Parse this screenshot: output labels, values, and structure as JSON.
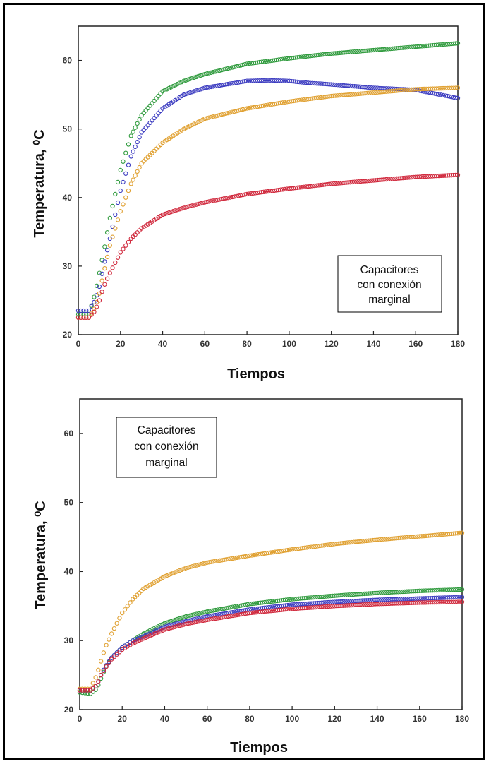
{
  "chart_data": [
    {
      "type": "scatter",
      "xlabel": "Tiempos",
      "ylabel": "Temperatura, ⁰C",
      "xlim": [
        0,
        180
      ],
      "ylim": [
        20,
        65
      ],
      "xticks": [
        0,
        20,
        40,
        60,
        80,
        100,
        120,
        140,
        160,
        180
      ],
      "yticks": [
        20,
        30,
        40,
        50,
        60
      ],
      "grid": false,
      "legend_box": [
        "Capacitores",
        "con conexión",
        "marginal"
      ],
      "legend_position": "bottom-right",
      "series": [
        {
          "color": "#2e9a3c",
          "x": [
            0,
            5,
            8,
            10,
            12,
            15,
            20,
            25,
            30,
            40,
            50,
            60,
            80,
            100,
            120,
            140,
            160,
            180
          ],
          "y": [
            23,
            23,
            26,
            29,
            32,
            37,
            44,
            49,
            52,
            55.5,
            57,
            58,
            59.5,
            60.3,
            61,
            61.5,
            62,
            62.5
          ]
        },
        {
          "color": "#3b3bc0",
          "x": [
            0,
            5,
            8,
            10,
            12,
            15,
            20,
            25,
            30,
            40,
            50,
            60,
            80,
            90,
            100,
            110,
            120,
            140,
            160,
            180
          ],
          "y": [
            23.5,
            23.5,
            25,
            27,
            30,
            34,
            41,
            46,
            49.5,
            53,
            55,
            56,
            57,
            57.1,
            57,
            56.7,
            56.5,
            56,
            55.7,
            54.5
          ]
        },
        {
          "color": "#e0a030",
          "x": [
            0,
            5,
            8,
            10,
            12,
            15,
            20,
            25,
            30,
            40,
            50,
            60,
            80,
            100,
            120,
            140,
            160,
            180
          ],
          "y": [
            22.5,
            22.5,
            24,
            26,
            29,
            33,
            38,
            42,
            45,
            48,
            50,
            51.5,
            53,
            54,
            54.8,
            55.3,
            55.8,
            56
          ]
        },
        {
          "color": "#d0283c",
          "x": [
            0,
            5,
            8,
            10,
            12,
            15,
            20,
            25,
            30,
            40,
            50,
            60,
            80,
            100,
            120,
            140,
            160,
            180
          ],
          "y": [
            22.5,
            22.5,
            23.5,
            25,
            27,
            29,
            32,
            34,
            35.5,
            37.5,
            38.5,
            39.3,
            40.5,
            41.3,
            42,
            42.5,
            43,
            43.3
          ]
        }
      ]
    },
    {
      "type": "scatter",
      "xlabel": "Tiempos",
      "ylabel": "Temperatura, ⁰C",
      "xlim": [
        0,
        180
      ],
      "ylim": [
        20,
        65
      ],
      "xticks": [
        0,
        20,
        40,
        60,
        80,
        100,
        120,
        140,
        160,
        180
      ],
      "yticks": [
        20,
        30,
        40,
        50,
        60
      ],
      "grid": false,
      "legend_box": [
        "Capacitores",
        "con conexión",
        "marginal"
      ],
      "legend_position": "top-left",
      "series": [
        {
          "color": "#e0a030",
          "x": [
            0,
            5,
            8,
            10,
            12,
            15,
            20,
            25,
            30,
            40,
            50,
            60,
            80,
            100,
            120,
            140,
            160,
            180
          ],
          "y": [
            23,
            23,
            25,
            27,
            29,
            31,
            34,
            36,
            37.5,
            39.3,
            40.5,
            41.3,
            42.3,
            43.2,
            44,
            44.6,
            45.1,
            45.6
          ]
        },
        {
          "color": "#2e9a3c",
          "x": [
            0,
            5,
            8,
            10,
            12,
            15,
            20,
            25,
            30,
            40,
            50,
            60,
            80,
            100,
            120,
            140,
            160,
            180
          ],
          "y": [
            22.5,
            22.3,
            23,
            24.5,
            26,
            27.5,
            29,
            30,
            31,
            32.5,
            33.5,
            34.2,
            35.3,
            36,
            36.5,
            36.9,
            37.2,
            37.4
          ]
        },
        {
          "color": "#3b3bc0",
          "x": [
            0,
            5,
            8,
            10,
            12,
            15,
            20,
            25,
            30,
            40,
            50,
            60,
            80,
            100,
            120,
            140,
            160,
            180
          ],
          "y": [
            22.8,
            22.8,
            23.5,
            25,
            26.2,
            27.5,
            29,
            30,
            30.6,
            32,
            32.8,
            33.5,
            34.5,
            35.2,
            35.6,
            35.9,
            36.1,
            36.3
          ]
        },
        {
          "color": "#d0283c",
          "x": [
            0,
            5,
            8,
            10,
            12,
            15,
            20,
            25,
            30,
            40,
            50,
            60,
            80,
            100,
            120,
            140,
            160,
            180
          ],
          "y": [
            22.8,
            22.8,
            23.5,
            25,
            26,
            27.3,
            28.7,
            29.6,
            30.3,
            31.6,
            32.4,
            33,
            34,
            34.6,
            35,
            35.3,
            35.5,
            35.6
          ]
        }
      ]
    }
  ]
}
